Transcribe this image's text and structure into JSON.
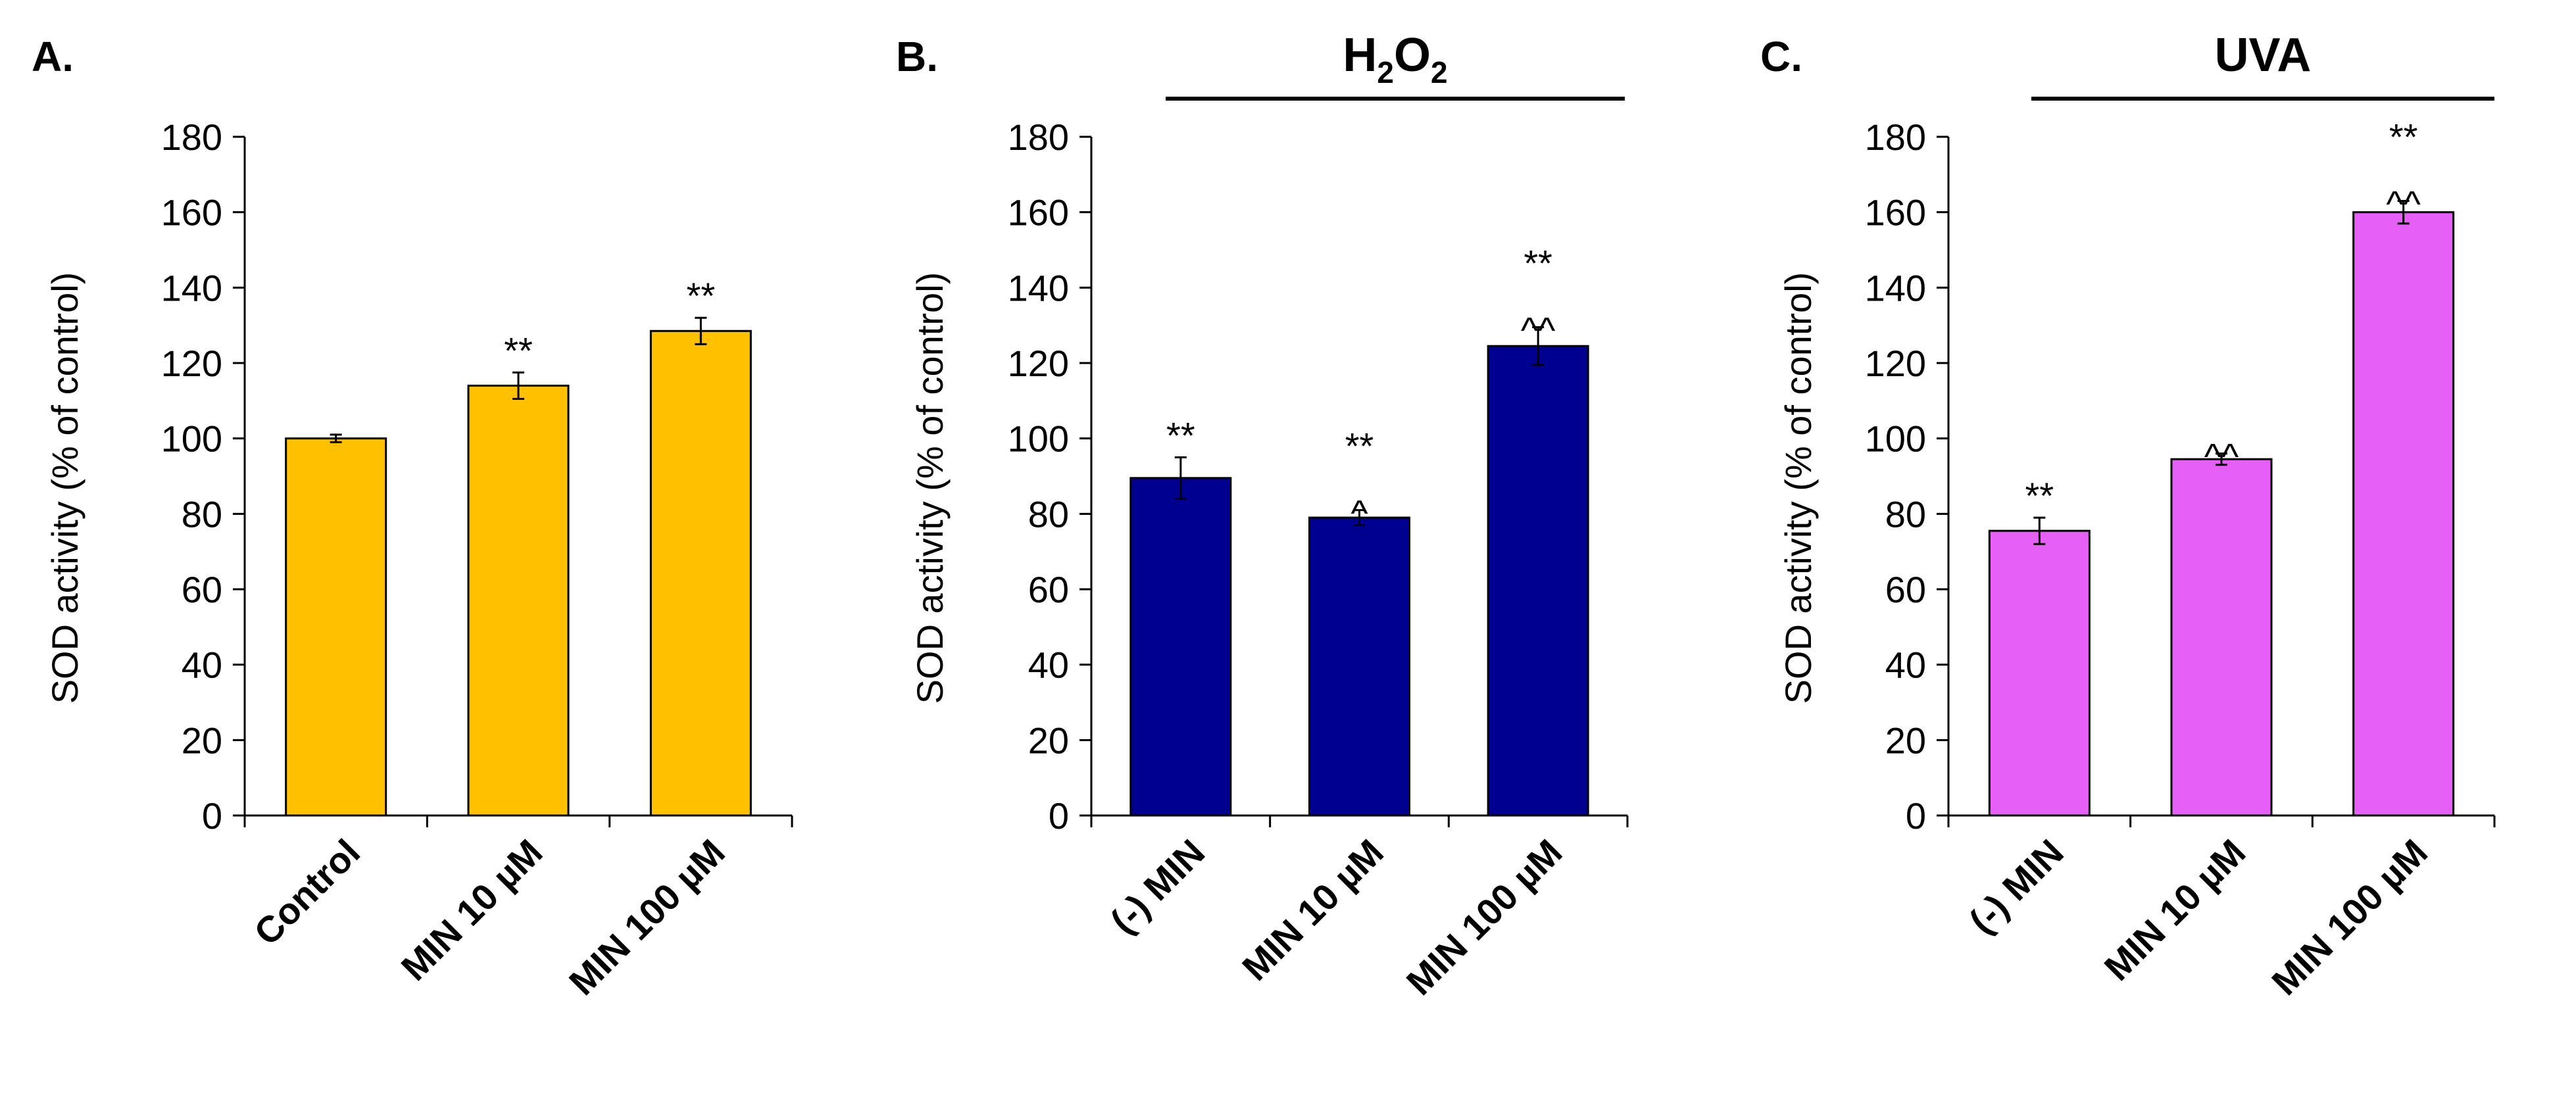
{
  "figure_title": "SOD activity",
  "chart_data": [
    {
      "type": "bar",
      "panel": "A.",
      "header": "",
      "categories": [
        "Control",
        "MIN 10 µM",
        "MIN 100 µM"
      ],
      "values": [
        100,
        114,
        128.5
      ],
      "errors": [
        1,
        3.5,
        3.5
      ],
      "annotations": [
        [],
        [
          "**"
        ],
        [
          "**"
        ]
      ],
      "ylabel": "SOD activity (% of control)",
      "ylim": [
        0,
        180
      ],
      "yticks": [
        0,
        20,
        40,
        60,
        80,
        100,
        120,
        140,
        160,
        180
      ],
      "color": "#FFC000"
    },
    {
      "type": "bar",
      "panel": "B.",
      "header": "H2O2",
      "header_parts": {
        "H1": "H",
        "sub1": "2",
        "O": "O",
        "sub2": "2"
      },
      "categories": [
        "(-) MIN",
        "MIN 10 µM",
        "MIN 100 µM"
      ],
      "values": [
        89.5,
        79,
        124.5
      ],
      "errors": [
        5.5,
        2,
        5
      ],
      "annotations": [
        [
          "**"
        ],
        [
          "**",
          "^"
        ],
        [
          "**",
          "^^"
        ]
      ],
      "ylabel": "SOD activity (% of control)",
      "ylim": [
        0,
        180
      ],
      "yticks": [
        0,
        20,
        40,
        60,
        80,
        100,
        120,
        140,
        160,
        180
      ],
      "color": "#000090"
    },
    {
      "type": "bar",
      "panel": "C.",
      "header": "UVA",
      "categories": [
        "(-) MIN",
        "MIN 10 µM",
        "MIN 100 µM"
      ],
      "values": [
        75.5,
        94.5,
        160
      ],
      "errors": [
        3.5,
        1.5,
        3
      ],
      "annotations": [
        [
          "**"
        ],
        [
          "^^"
        ],
        [
          "**",
          "^^"
        ]
      ],
      "ylabel": "SOD activity (% of control)",
      "ylim": [
        0,
        180
      ],
      "yticks": [
        0,
        20,
        40,
        60,
        80,
        100,
        120,
        140,
        160,
        180
      ],
      "color": "#E660F7"
    }
  ]
}
